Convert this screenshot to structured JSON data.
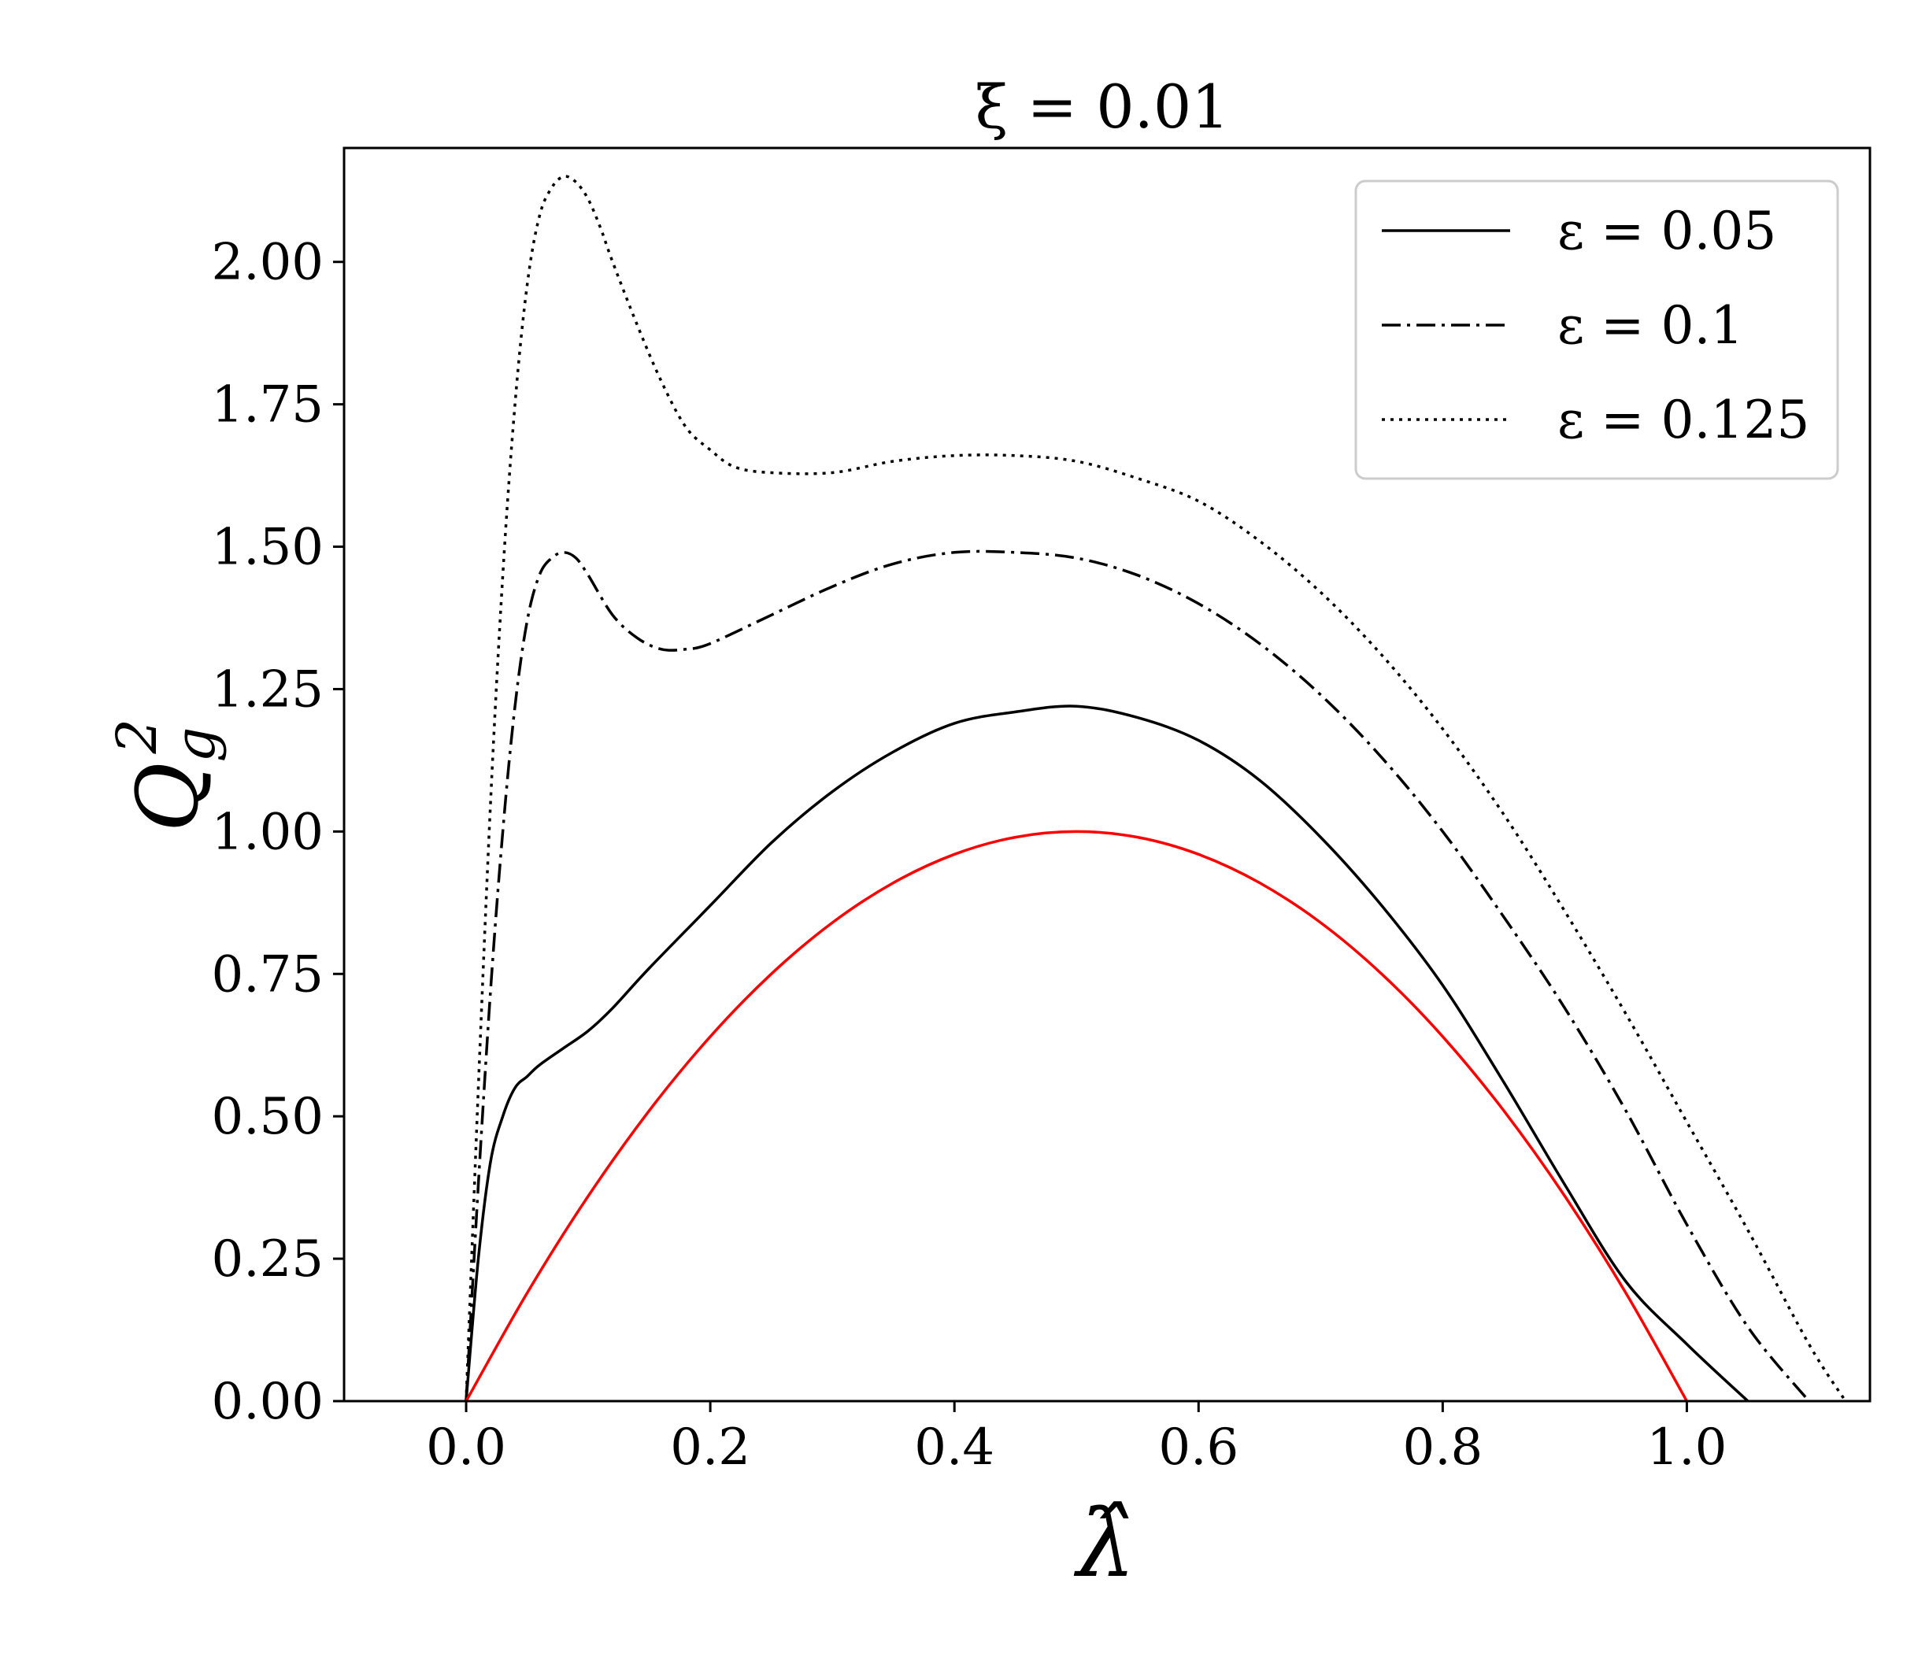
{
  "chart_data": {
    "type": "line",
    "title": "ξ = 0.01",
    "xlabel": "λ̂",
    "ylabel_base": "Q",
    "ylabel_sub": "g",
    "ylabel_sup": "2",
    "xlim": [
      -0.1,
      1.15
    ],
    "ylim": [
      0.0,
      2.2
    ],
    "xticks": [
      0.0,
      0.2,
      0.4,
      0.6,
      0.8,
      1.0
    ],
    "xtick_labels": [
      "0.0",
      "0.2",
      "0.4",
      "0.6",
      "0.8",
      "1.0"
    ],
    "yticks": [
      0.0,
      0.25,
      0.5,
      0.75,
      1.0,
      1.25,
      1.5,
      1.75,
      2.0
    ],
    "ytick_labels": [
      "0.00",
      "0.25",
      "0.50",
      "0.75",
      "1.00",
      "1.25",
      "1.50",
      "1.75",
      "2.00"
    ],
    "grid": false,
    "legend_position": "top-right",
    "series": [
      {
        "name": "ε = 0.05",
        "color": "#000000",
        "style": "solid",
        "x": [
          0.0,
          0.01,
          0.02,
          0.03,
          0.04,
          0.05,
          0.06,
          0.08,
          0.1,
          0.12,
          0.15,
          0.2,
          0.25,
          0.3,
          0.35,
          0.4,
          0.45,
          0.5,
          0.55,
          0.6,
          0.65,
          0.7,
          0.75,
          0.8,
          0.85,
          0.9,
          0.95,
          1.0,
          1.05
        ],
        "y": [
          0.0,
          0.25,
          0.42,
          0.5,
          0.55,
          0.57,
          0.59,
          0.62,
          0.65,
          0.69,
          0.76,
          0.87,
          0.98,
          1.07,
          1.14,
          1.19,
          1.21,
          1.22,
          1.2,
          1.16,
          1.09,
          0.99,
          0.87,
          0.73,
          0.56,
          0.38,
          0.21,
          0.1,
          0.0
        ]
      },
      {
        "name": "ε = 0.1",
        "color": "#000000",
        "style": "dashdot",
        "x": [
          0.0,
          0.01,
          0.02,
          0.03,
          0.04,
          0.05,
          0.06,
          0.07,
          0.08,
          0.09,
          0.1,
          0.12,
          0.14,
          0.16,
          0.18,
          0.2,
          0.25,
          0.3,
          0.35,
          0.4,
          0.45,
          0.5,
          0.55,
          0.6,
          0.65,
          0.7,
          0.75,
          0.8,
          0.85,
          0.9,
          0.95,
          1.0,
          1.05,
          1.1
        ],
        "y": [
          0.0,
          0.38,
          0.72,
          1.0,
          1.22,
          1.37,
          1.45,
          1.48,
          1.49,
          1.48,
          1.45,
          1.38,
          1.34,
          1.32,
          1.32,
          1.33,
          1.38,
          1.43,
          1.47,
          1.49,
          1.49,
          1.48,
          1.45,
          1.4,
          1.33,
          1.24,
          1.13,
          1.0,
          0.85,
          0.69,
          0.51,
          0.31,
          0.13,
          0.0
        ]
      },
      {
        "name": "ε = 0.125",
        "color": "#000000",
        "style": "dotted",
        "x": [
          0.0,
          0.01,
          0.02,
          0.03,
          0.04,
          0.05,
          0.06,
          0.07,
          0.08,
          0.09,
          0.1,
          0.11,
          0.12,
          0.14,
          0.16,
          0.18,
          0.2,
          0.22,
          0.25,
          0.3,
          0.35,
          0.4,
          0.45,
          0.5,
          0.55,
          0.6,
          0.65,
          0.7,
          0.75,
          0.8,
          0.85,
          0.9,
          0.95,
          1.0,
          1.05,
          1.1,
          1.13
        ],
        "y": [
          0.0,
          0.55,
          1.05,
          1.45,
          1.75,
          1.96,
          2.08,
          2.13,
          2.15,
          2.14,
          2.11,
          2.06,
          2.0,
          1.89,
          1.79,
          1.71,
          1.67,
          1.64,
          1.63,
          1.63,
          1.65,
          1.66,
          1.66,
          1.65,
          1.62,
          1.58,
          1.51,
          1.42,
          1.31,
          1.18,
          1.03,
          0.86,
          0.68,
          0.49,
          0.3,
          0.1,
          0.0
        ]
      },
      {
        "name": "",
        "color": "#ff0000",
        "style": "solid",
        "x": [
          0.0,
          0.05,
          0.1,
          0.15,
          0.2,
          0.25,
          0.3,
          0.35,
          0.4,
          0.45,
          0.5,
          0.55,
          0.6,
          0.65,
          0.7,
          0.75,
          0.8,
          0.85,
          0.9,
          0.95,
          1.0
        ],
        "y": [
          0.0,
          0.19,
          0.36,
          0.51,
          0.64,
          0.75,
          0.84,
          0.91,
          0.96,
          0.99,
          1.0,
          0.99,
          0.96,
          0.91,
          0.84,
          0.75,
          0.64,
          0.51,
          0.36,
          0.19,
          0.0
        ]
      }
    ]
  }
}
